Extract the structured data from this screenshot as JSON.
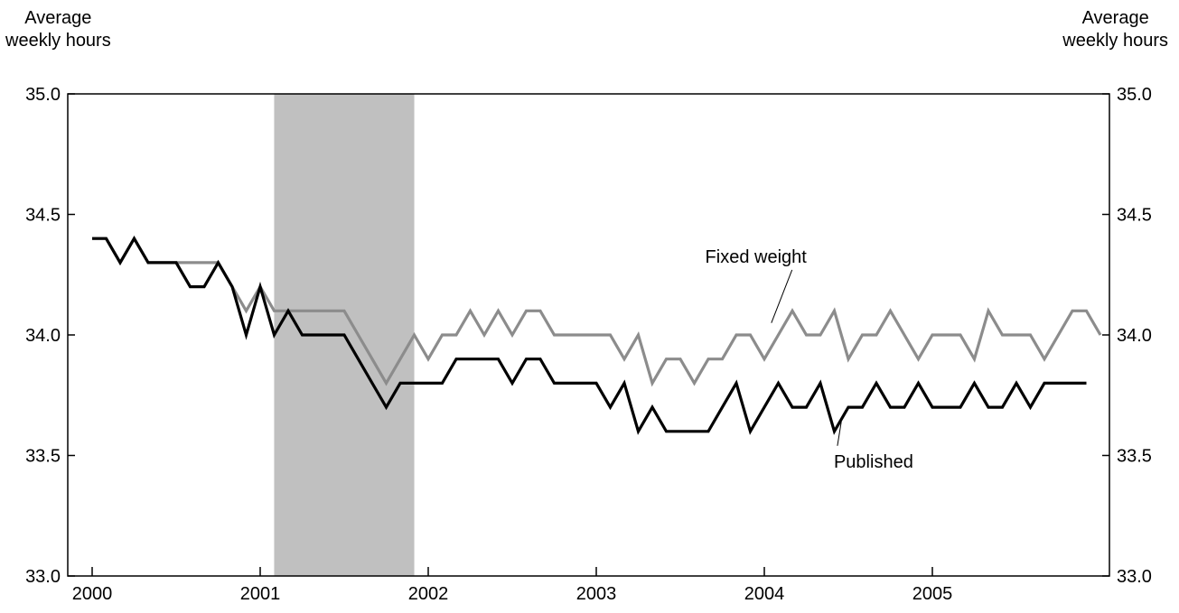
{
  "chart_data": {
    "type": "line",
    "ylabel_left": [
      "Average",
      "weekly  hours"
    ],
    "ylabel_right": [
      "Average",
      "weekly  hours"
    ],
    "ylim": [
      33.0,
      35.0
    ],
    "yticks": [
      "33.0",
      "33.5",
      "34.0",
      "34.5",
      "35.0"
    ],
    "xlim": [
      2000.0,
      2006.0
    ],
    "xticks": [
      "2000",
      "2001",
      "2002",
      "2003",
      "2004",
      "2005"
    ],
    "recession": {
      "start": 2001.083,
      "end": 2001.917
    },
    "grid": false,
    "series": [
      {
        "name": "Fixed weight",
        "color": "#8c8c8c",
        "start": 2000.0,
        "step_months": 1,
        "values": [
          34.4,
          34.4,
          34.3,
          34.4,
          34.3,
          34.3,
          34.3,
          34.3,
          34.3,
          34.3,
          34.2,
          34.1,
          34.2,
          34.1,
          34.1,
          34.1,
          34.1,
          34.1,
          34.1,
          34.0,
          33.9,
          33.8,
          33.9,
          34.0,
          33.9,
          34.0,
          34.0,
          34.1,
          34.0,
          34.1,
          34.0,
          34.1,
          34.1,
          34.0,
          34.0,
          34.0,
          34.0,
          34.0,
          33.9,
          34.0,
          33.8,
          33.9,
          33.9,
          33.8,
          33.9,
          33.9,
          34.0,
          34.0,
          33.9,
          34.0,
          34.1,
          34.0,
          34.0,
          34.1,
          33.9,
          34.0,
          34.0,
          34.1,
          34.0,
          33.9,
          34.0,
          34.0,
          34.0,
          33.9,
          34.1,
          34.0,
          34.0,
          34.0,
          33.9,
          34.0,
          34.1,
          34.1,
          34.0
        ]
      },
      {
        "name": "Published",
        "color": "#000000",
        "start": 2000.0,
        "step_months": 1,
        "values": [
          34.4,
          34.4,
          34.3,
          34.4,
          34.3,
          34.3,
          34.3,
          34.2,
          34.2,
          34.3,
          34.2,
          34.0,
          34.2,
          34.0,
          34.1,
          34.0,
          34.0,
          34.0,
          34.0,
          33.9,
          33.8,
          33.7,
          33.8,
          33.8,
          33.8,
          33.8,
          33.9,
          33.9,
          33.9,
          33.9,
          33.8,
          33.9,
          33.9,
          33.8,
          33.8,
          33.8,
          33.8,
          33.7,
          33.8,
          33.6,
          33.7,
          33.6,
          33.6,
          33.6,
          33.6,
          33.7,
          33.8,
          33.6,
          33.7,
          33.8,
          33.7,
          33.7,
          33.8,
          33.6,
          33.7,
          33.7,
          33.8,
          33.7,
          33.7,
          33.8,
          33.7,
          33.7,
          33.7,
          33.8,
          33.7,
          33.7,
          33.8,
          33.7,
          33.8,
          33.8,
          33.8,
          33.8
        ]
      }
    ],
    "annotations": [
      {
        "text": "Fixed weight",
        "series": "Fixed weight",
        "label_x": 2003.95,
        "label_y": 34.3,
        "point_x": 2004.042,
        "point_y": 34.05
      },
      {
        "text": "Published",
        "series": "Published",
        "label_x": 2004.65,
        "label_y": 33.45,
        "point_x": 2004.458,
        "point_y": 33.64
      }
    ]
  }
}
